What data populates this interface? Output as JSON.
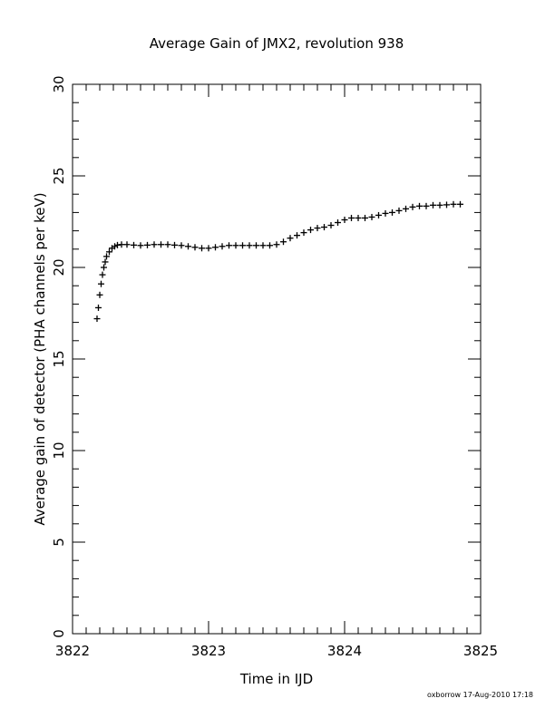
{
  "chart_data": {
    "type": "scatter",
    "title": "Average Gain of JMX2, revolution 938",
    "xlabel": "Time in IJD",
    "ylabel": "Average gain of detector (PHA channels per keV)",
    "xlim": [
      3822,
      3825
    ],
    "ylim": [
      0,
      30
    ],
    "x_ticks": [
      "3822",
      "3823",
      "3824",
      "3825"
    ],
    "y_ticks": [
      "0",
      "5",
      "10",
      "15",
      "20",
      "25",
      "30"
    ],
    "marker": "plus",
    "color": "#000000",
    "grid": false,
    "points": [
      [
        3822.18,
        17.2
      ],
      [
        3822.19,
        17.8
      ],
      [
        3822.2,
        18.5
      ],
      [
        3822.21,
        19.1
      ],
      [
        3822.22,
        19.6
      ],
      [
        3822.23,
        20.0
      ],
      [
        3822.24,
        20.3
      ],
      [
        3822.25,
        20.6
      ],
      [
        3822.27,
        20.85
      ],
      [
        3822.29,
        21.05
      ],
      [
        3822.31,
        21.15
      ],
      [
        3822.33,
        21.22
      ],
      [
        3822.36,
        21.25
      ],
      [
        3822.4,
        21.25
      ],
      [
        3822.45,
        21.22
      ],
      [
        3822.5,
        21.2
      ],
      [
        3822.55,
        21.22
      ],
      [
        3822.6,
        21.25
      ],
      [
        3822.65,
        21.25
      ],
      [
        3822.7,
        21.25
      ],
      [
        3822.75,
        21.22
      ],
      [
        3822.8,
        21.2
      ],
      [
        3822.85,
        21.15
      ],
      [
        3822.9,
        21.1
      ],
      [
        3822.95,
        21.05
      ],
      [
        3823.0,
        21.05
      ],
      [
        3823.05,
        21.1
      ],
      [
        3823.1,
        21.15
      ],
      [
        3823.15,
        21.2
      ],
      [
        3823.2,
        21.2
      ],
      [
        3823.25,
        21.2
      ],
      [
        3823.3,
        21.2
      ],
      [
        3823.35,
        21.2
      ],
      [
        3823.4,
        21.2
      ],
      [
        3823.45,
        21.2
      ],
      [
        3823.5,
        21.25
      ],
      [
        3823.55,
        21.4
      ],
      [
        3823.6,
        21.6
      ],
      [
        3823.65,
        21.75
      ],
      [
        3823.7,
        21.9
      ],
      [
        3823.75,
        22.05
      ],
      [
        3823.8,
        22.15
      ],
      [
        3823.85,
        22.2
      ],
      [
        3823.9,
        22.3
      ],
      [
        3823.95,
        22.45
      ],
      [
        3824.0,
        22.6
      ],
      [
        3824.05,
        22.7
      ],
      [
        3824.1,
        22.7
      ],
      [
        3824.15,
        22.7
      ],
      [
        3824.2,
        22.75
      ],
      [
        3824.25,
        22.85
      ],
      [
        3824.3,
        22.95
      ],
      [
        3824.35,
        23.0
      ],
      [
        3824.4,
        23.1
      ],
      [
        3824.45,
        23.2
      ],
      [
        3824.5,
        23.3
      ],
      [
        3824.55,
        23.35
      ],
      [
        3824.6,
        23.35
      ],
      [
        3824.65,
        23.4
      ],
      [
        3824.7,
        23.4
      ],
      [
        3824.75,
        23.42
      ],
      [
        3824.8,
        23.45
      ],
      [
        3824.85,
        23.45
      ]
    ]
  },
  "footer": "oxborrow 17-Aug-2010 17:18"
}
